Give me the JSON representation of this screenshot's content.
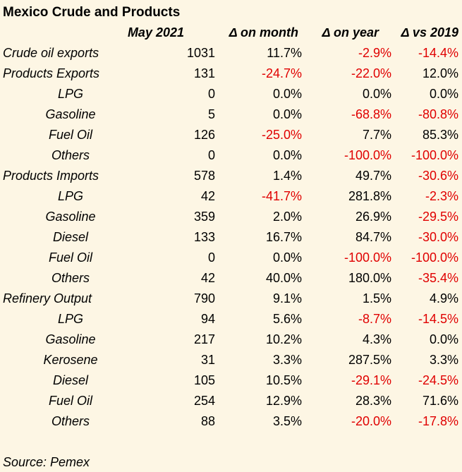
{
  "title": "Mexico Crude and Products",
  "source": "Source: Pemex",
  "colors": {
    "background": "#fdf6e4",
    "negative": "#e00000",
    "text": "#000000"
  },
  "chart_data": {
    "type": "table",
    "title": "Mexico Crude and Products",
    "columns": [
      "May 2021",
      "Δ on month",
      "Δ on year",
      "Δ vs 2019"
    ],
    "rows": [
      {
        "label": "Crude oil exports",
        "level": 0,
        "may": "1031",
        "month": "11.7%",
        "year": "-2.9%",
        "vs2019": "-14.4%"
      },
      {
        "label": "Products Exports",
        "level": 0,
        "may": "131",
        "month": "-24.7%",
        "year": "-22.0%",
        "vs2019": "12.0%"
      },
      {
        "label": "LPG",
        "level": 1,
        "may": "0",
        "month": "0.0%",
        "year": "0.0%",
        "vs2019": "0.0%"
      },
      {
        "label": "Gasoline",
        "level": 1,
        "may": "5",
        "month": "0.0%",
        "year": "-68.8%",
        "vs2019": "-80.8%"
      },
      {
        "label": "Fuel Oil",
        "level": 1,
        "may": "126",
        "month": "-25.0%",
        "year": "7.7%",
        "vs2019": "85.3%"
      },
      {
        "label": "Others",
        "level": 1,
        "may": "0",
        "month": "0.0%",
        "year": "-100.0%",
        "vs2019": "-100.0%"
      },
      {
        "label": "Products Imports",
        "level": 0,
        "may": "578",
        "month": "1.4%",
        "year": "49.7%",
        "vs2019": "-30.6%"
      },
      {
        "label": "LPG",
        "level": 1,
        "may": "42",
        "month": "-41.7%",
        "year": "281.8%",
        "vs2019": "-2.3%"
      },
      {
        "label": "Gasoline",
        "level": 1,
        "may": "359",
        "month": "2.0%",
        "year": "26.9%",
        "vs2019": "-29.5%"
      },
      {
        "label": "Diesel",
        "level": 1,
        "may": "133",
        "month": "16.7%",
        "year": "84.7%",
        "vs2019": "-30.0%"
      },
      {
        "label": "Fuel Oil",
        "level": 1,
        "may": "0",
        "month": "0.0%",
        "year": "-100.0%",
        "vs2019": "-100.0%"
      },
      {
        "label": "Others",
        "level": 1,
        "may": "42",
        "month": "40.0%",
        "year": "180.0%",
        "vs2019": "-35.4%"
      },
      {
        "label": "Refinery Output",
        "level": 0,
        "may": "790",
        "month": "9.1%",
        "year": "1.5%",
        "vs2019": "4.9%"
      },
      {
        "label": "LPG",
        "level": 1,
        "may": "94",
        "month": "5.6%",
        "year": "-8.7%",
        "vs2019": "-14.5%"
      },
      {
        "label": "Gasoline",
        "level": 1,
        "may": "217",
        "month": "10.2%",
        "year": "4.3%",
        "vs2019": "0.0%"
      },
      {
        "label": "Kerosene",
        "level": 1,
        "may": "31",
        "month": "3.3%",
        "year": "287.5%",
        "vs2019": "3.3%"
      },
      {
        "label": "Diesel",
        "level": 1,
        "may": "105",
        "month": "10.5%",
        "year": "-29.1%",
        "vs2019": "-24.5%"
      },
      {
        "label": "Fuel Oil",
        "level": 1,
        "may": "254",
        "month": "12.9%",
        "year": "28.3%",
        "vs2019": "71.6%"
      },
      {
        "label": "Others",
        "level": 1,
        "may": "88",
        "month": "3.5%",
        "year": "-20.0%",
        "vs2019": "-17.8%"
      }
    ]
  }
}
